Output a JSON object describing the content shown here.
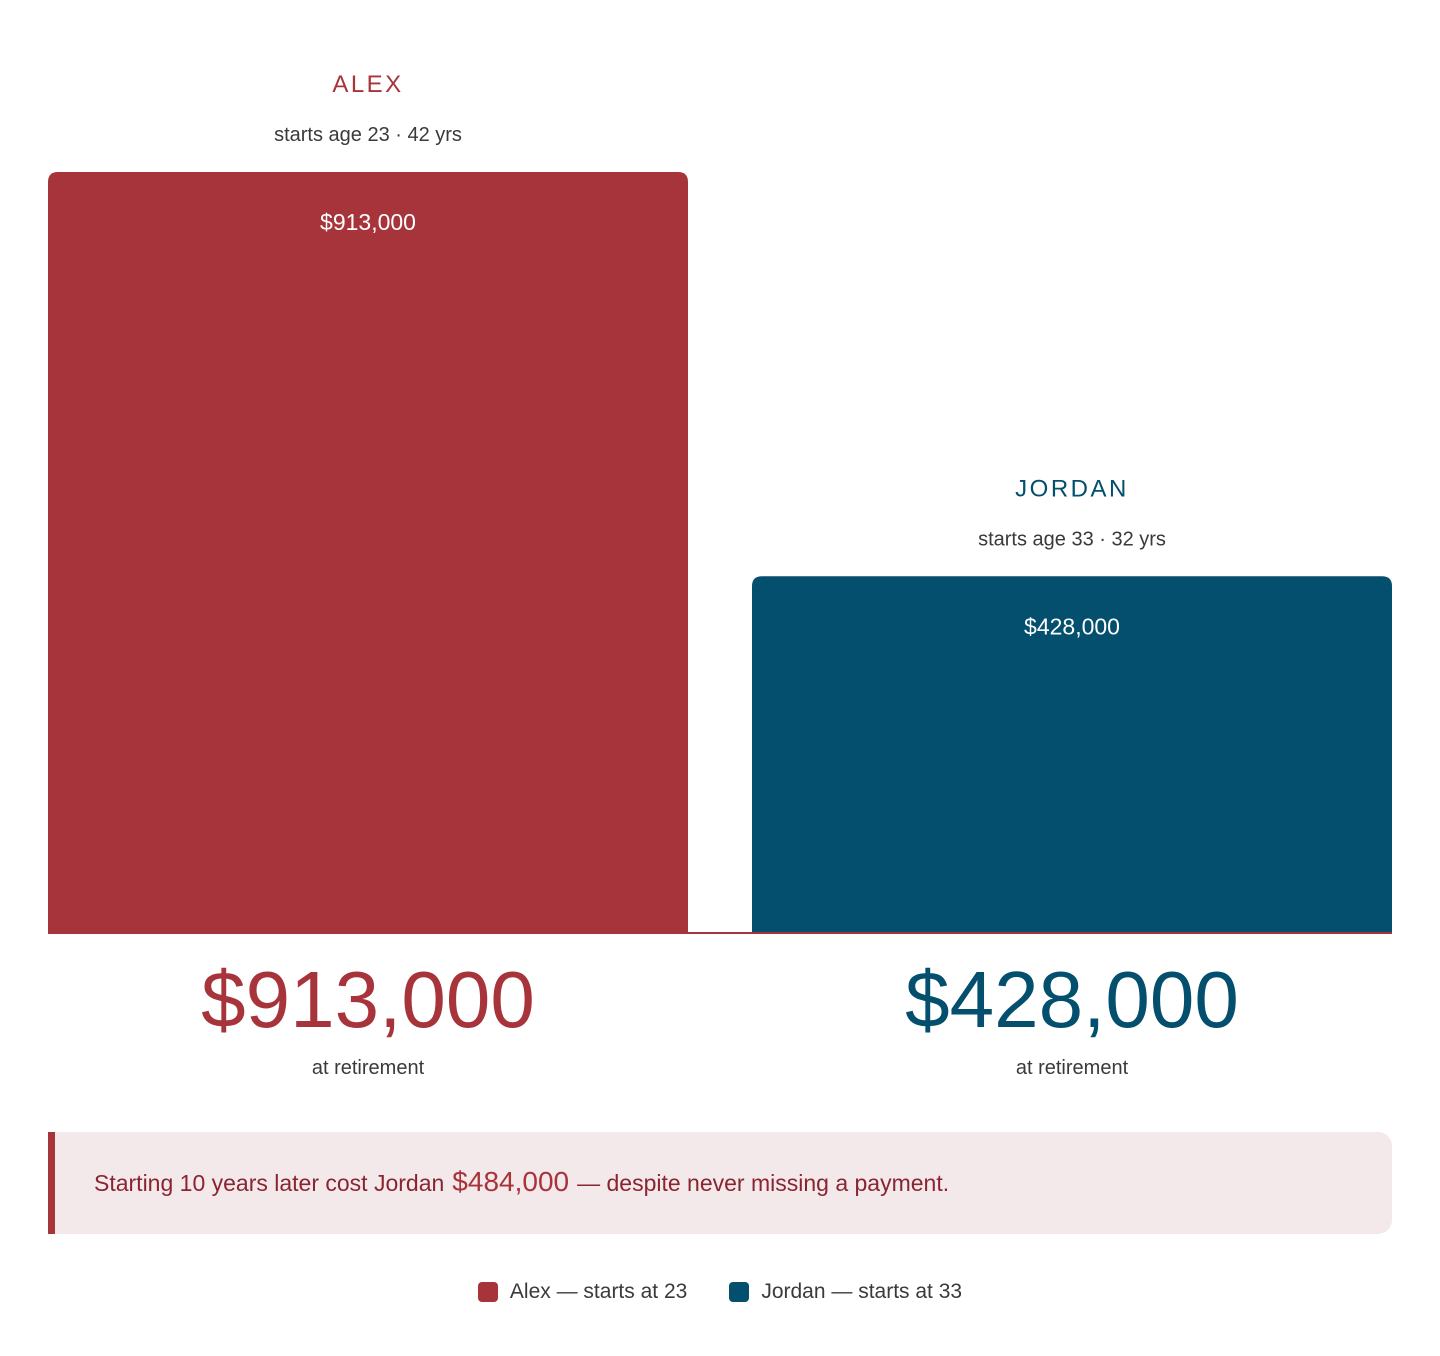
{
  "chart_data": {
    "type": "bar",
    "categories": [
      "ALEX",
      "JORDAN"
    ],
    "values": [
      913000,
      428000
    ],
    "bar_labels": [
      "$913,000",
      "$428,000"
    ],
    "subtitles": [
      "starts age 23 · 42 yrs",
      "starts age 33 · 32 yrs"
    ],
    "totals": [
      "$913,000",
      "$428,000"
    ],
    "total_caption": "at retirement",
    "ylim": [
      0,
      913000
    ],
    "grid": false,
    "legend_placement": "bottom-center",
    "colors": [
      "#a8343b",
      "#034f6d"
    ],
    "legend": [
      "Alex — starts at 23",
      "Jordan — starts at 33"
    ]
  },
  "callout": {
    "pre": "Starting 10 years later cost Jordan",
    "amount": "$484,000",
    "post": "— despite never missing a payment."
  },
  "colors": {
    "accent": "#a8343b",
    "secondary": "#034f6d",
    "callout_bg": "#f3e9eb"
  }
}
